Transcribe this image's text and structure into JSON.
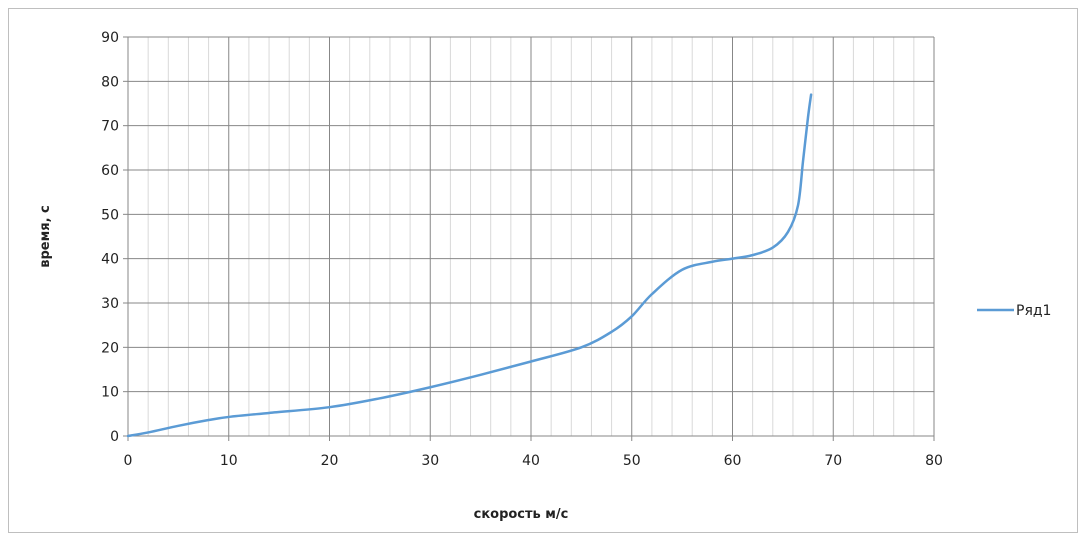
{
  "chart_data": {
    "type": "line",
    "title": "",
    "xlabel": "скорость м/с",
    "ylabel": "время, с",
    "xlim": [
      0,
      80
    ],
    "ylim": [
      0,
      90
    ],
    "x_ticks": [
      0,
      10,
      20,
      30,
      40,
      50,
      60,
      70,
      80
    ],
    "y_ticks": [
      0,
      10,
      20,
      30,
      40,
      50,
      60,
      70,
      80,
      90
    ],
    "x_minor_step": 2,
    "grid": true,
    "legend_position": "right",
    "series": [
      {
        "name": "Ряд1",
        "color": "#5b9bd5",
        "x": [
          0,
          2,
          5,
          8,
          10,
          14,
          20,
          25,
          30,
          35,
          40,
          45,
          48,
          50,
          52,
          55,
          58,
          60,
          62,
          64,
          65.5,
          66.5,
          67,
          67.5,
          67.8
        ],
        "y": [
          0,
          0.8,
          2.3,
          3.6,
          4.3,
          5.2,
          6.5,
          8.5,
          11,
          13.8,
          16.8,
          20,
          23.5,
          27,
          32,
          37.5,
          39.3,
          40,
          40.8,
          42.5,
          46,
          52,
          62,
          72,
          77
        ]
      }
    ]
  }
}
